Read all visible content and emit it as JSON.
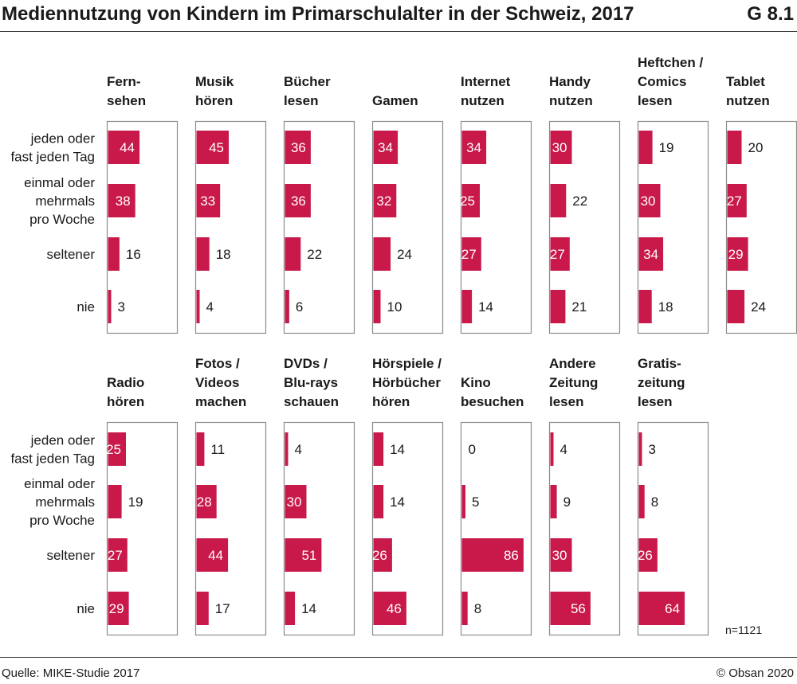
{
  "title": "Mediennutzung von Kindern im Primarschulalter in der Schweiz, 2017",
  "figure_number": "G 8.1",
  "source": "Quelle: MIKE-Studie 2017",
  "copyright": "© Obsan 2020",
  "sample_note": "n=1121",
  "colors": {
    "bar": "#c8194a",
    "frame": "#8c8c8c",
    "text": "#1a1a1a"
  },
  "chart_data": {
    "type": "bar",
    "orientation": "horizontal",
    "unit": "%",
    "row_labels": [
      [
        "jeden oder",
        "fast jeden Tag"
      ],
      [
        "einmal oder",
        "mehrmals",
        "pro Woche"
      ],
      [
        "seltener"
      ],
      [
        "nie"
      ]
    ],
    "panels": [
      {
        "title": [
          "Fern-",
          "sehen"
        ],
        "values": [
          44,
          38,
          16,
          3
        ]
      },
      {
        "title": [
          "Musik",
          "hören"
        ],
        "values": [
          45,
          33,
          18,
          4
        ]
      },
      {
        "title": [
          "Bücher",
          "lesen"
        ],
        "values": [
          36,
          36,
          22,
          6
        ]
      },
      {
        "title": [
          "Gamen"
        ],
        "values": [
          34,
          32,
          24,
          10
        ]
      },
      {
        "title": [
          "Internet",
          "nutzen"
        ],
        "values": [
          34,
          25,
          27,
          14
        ]
      },
      {
        "title": [
          "Handy",
          "nutzen"
        ],
        "values": [
          30,
          22,
          27,
          21
        ]
      },
      {
        "title": [
          "Heftchen /",
          "Comics",
          "lesen"
        ],
        "values": [
          19,
          30,
          34,
          18
        ]
      },
      {
        "title": [
          "Tablet",
          "nutzen"
        ],
        "values": [
          20,
          27,
          29,
          24
        ]
      },
      {
        "title": [
          "Radio",
          "hören"
        ],
        "values": [
          25,
          19,
          27,
          29
        ]
      },
      {
        "title": [
          "Fotos /",
          "Videos",
          "machen"
        ],
        "values": [
          11,
          28,
          44,
          17
        ]
      },
      {
        "title": [
          "DVDs /",
          "Blu-rays",
          "schauen"
        ],
        "values": [
          4,
          30,
          51,
          14
        ]
      },
      {
        "title": [
          "Hörspiele /",
          "Hörbücher",
          "hören"
        ],
        "values": [
          14,
          14,
          26,
          46
        ]
      },
      {
        "title": [
          "Kino",
          "besuchen"
        ],
        "values": [
          0,
          5,
          86,
          8
        ]
      },
      {
        "title": [
          "Andere",
          "Zeitung",
          "lesen"
        ],
        "values": [
          4,
          9,
          30,
          56
        ]
      },
      {
        "title": [
          "Gratis-",
          "zeitung",
          "lesen"
        ],
        "values": [
          3,
          8,
          26,
          64
        ]
      }
    ]
  }
}
